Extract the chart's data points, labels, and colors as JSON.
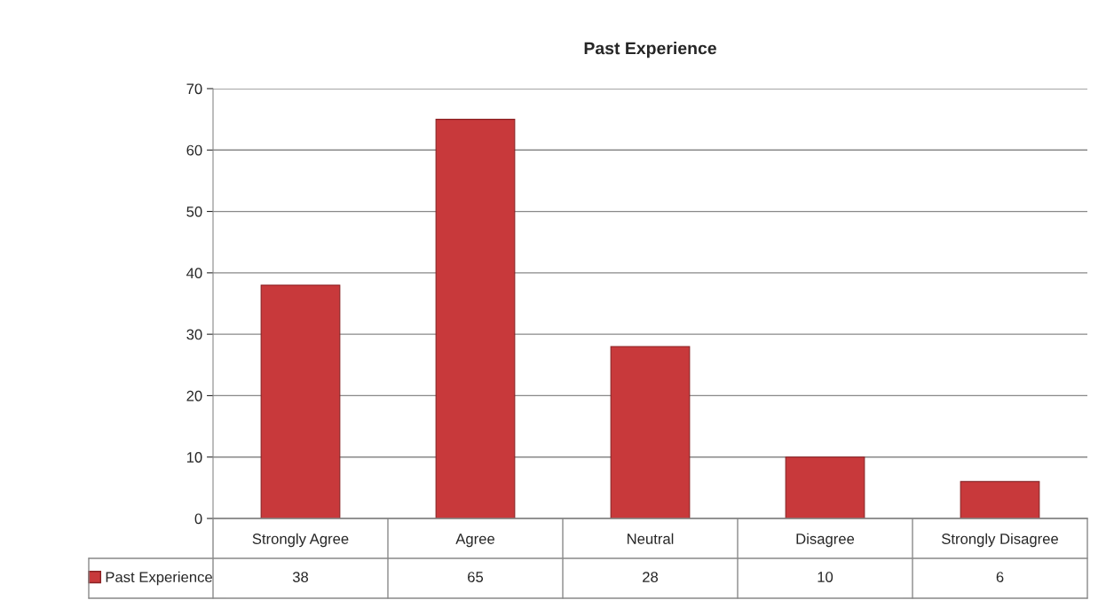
{
  "chart_data": {
    "type": "bar",
    "title": "Past Experience",
    "categories": [
      "Strongly Agree",
      "Agree",
      "Neutral",
      "Disagree",
      "Strongly Disagree"
    ],
    "series": [
      {
        "name": "Past Experience",
        "color": "#c8393b",
        "values": [
          38,
          65,
          28,
          10,
          6
        ]
      }
    ],
    "ylim": [
      0,
      70
    ],
    "yticks": [
      0,
      10,
      20,
      30,
      40,
      50,
      60,
      70
    ],
    "grid": "y",
    "legend": "bottom left",
    "data_labels": true
  }
}
